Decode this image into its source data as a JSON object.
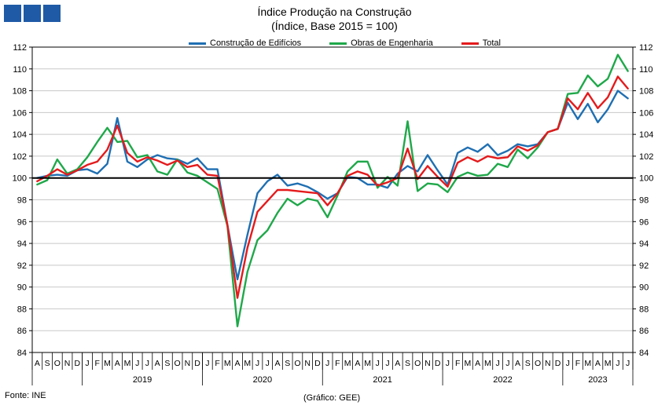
{
  "header": {
    "title": "Índice Produção na Construção",
    "subtitle": "(Índice, Base 2015 = 100)"
  },
  "footer": {
    "source": "Fonte: INE",
    "credit": "(Gráfico: GEE)"
  },
  "colors": {
    "logo": "#1f5aa6",
    "grid": "#c8c8c8",
    "axis": "#000000",
    "baseline": "#000000"
  },
  "chart_data": {
    "type": "line",
    "title": "Índice Produção na Construção",
    "subtitle": "(Índice, Base 2015 = 100)",
    "xlabel": "",
    "ylabel": "",
    "ylim": [
      84,
      112
    ],
    "yticks": [
      84,
      86,
      88,
      90,
      92,
      94,
      96,
      98,
      100,
      102,
      104,
      106,
      108,
      110,
      112
    ],
    "y2ticks": [
      84,
      86,
      88,
      90,
      92,
      94,
      96,
      98,
      100,
      102,
      104,
      106,
      108,
      110,
      112
    ],
    "grid": true,
    "legend": "top-center",
    "reference_line": 100,
    "month_labels": [
      "A",
      "S",
      "O",
      "N",
      "D",
      "J",
      "F",
      "M",
      "A",
      "M",
      "J",
      "J",
      "A",
      "S",
      "O",
      "N",
      "D",
      "J",
      "F",
      "M",
      "A",
      "M",
      "J",
      "J",
      "A",
      "S",
      "O",
      "N",
      "D",
      "J",
      "F",
      "M",
      "A",
      "M",
      "J",
      "J",
      "A",
      "S",
      "O",
      "N",
      "D",
      "J",
      "F",
      "M",
      "A",
      "M",
      "J",
      "J",
      "A",
      "S",
      "O",
      "N",
      "D",
      "J",
      "F",
      "M",
      "A",
      "M",
      "J",
      "J"
    ],
    "year_labels": [
      {
        "label": "2019",
        "start": 5,
        "end": 16
      },
      {
        "label": "2020",
        "start": 17,
        "end": 28
      },
      {
        "label": "2021",
        "start": 29,
        "end": 40
      },
      {
        "label": "2022",
        "start": 41,
        "end": 52
      },
      {
        "label": "2023",
        "start": 53,
        "end": 59
      }
    ],
    "series": [
      {
        "name": "Construção de Edifícios",
        "color": "#1f6fb2",
        "values": [
          100.0,
          100.2,
          100.3,
          100.2,
          100.7,
          100.8,
          100.4,
          101.3,
          105.5,
          101.5,
          101.0,
          101.7,
          102.1,
          101.8,
          101.7,
          101.3,
          101.8,
          100.8,
          100.8,
          95.7,
          90.7,
          94.8,
          98.6,
          99.7,
          100.3,
          99.3,
          99.5,
          99.2,
          98.7,
          98.1,
          98.6,
          100.1,
          100.0,
          99.4,
          99.4,
          99.1,
          100.4,
          101.1,
          100.6,
          102.1,
          100.7,
          99.4,
          102.3,
          102.8,
          102.4,
          103.1,
          102.1,
          102.5,
          103.1,
          102.9,
          103.1,
          104.2,
          104.5,
          106.9,
          105.4,
          106.8,
          105.1,
          106.3,
          108.0,
          107.3
        ]
      },
      {
        "name": "Obras de Engenharia",
        "color": "#1fa84a",
        "values": [
          99.4,
          99.8,
          101.7,
          100.4,
          100.8,
          101.9,
          103.3,
          104.6,
          103.3,
          103.4,
          101.9,
          102.1,
          100.6,
          100.3,
          101.7,
          100.5,
          100.2,
          99.6,
          99.0,
          95.6,
          86.4,
          91.4,
          94.3,
          95.2,
          96.8,
          98.1,
          97.5,
          98.1,
          97.9,
          96.4,
          98.4,
          100.6,
          101.5,
          101.5,
          99.1,
          100.1,
          99.3,
          105.2,
          98.8,
          99.5,
          99.4,
          98.7,
          100.1,
          100.5,
          100.2,
          100.3,
          101.3,
          101.0,
          102.6,
          101.8,
          102.8,
          104.2,
          104.5,
          107.7,
          107.8,
          109.4,
          108.4,
          109.1,
          111.3,
          109.8
        ]
      },
      {
        "name": "Total",
        "color": "#e41a1c",
        "values": [
          99.7,
          100.2,
          100.8,
          100.3,
          100.7,
          101.2,
          101.5,
          102.6,
          104.8,
          102.3,
          101.5,
          101.9,
          101.6,
          101.2,
          101.6,
          101.0,
          101.2,
          100.3,
          100.2,
          95.7,
          89.0,
          93.6,
          96.9,
          97.9,
          98.9,
          98.9,
          98.8,
          98.7,
          98.6,
          97.5,
          98.6,
          100.2,
          100.6,
          100.3,
          99.3,
          99.6,
          100.0,
          102.7,
          99.9,
          101.1,
          100.1,
          99.2,
          101.4,
          101.9,
          101.5,
          102.0,
          101.8,
          101.9,
          102.9,
          102.5,
          103.0,
          104.2,
          104.5,
          107.3,
          106.3,
          107.8,
          106.4,
          107.4,
          109.3,
          108.2
        ]
      }
    ]
  }
}
